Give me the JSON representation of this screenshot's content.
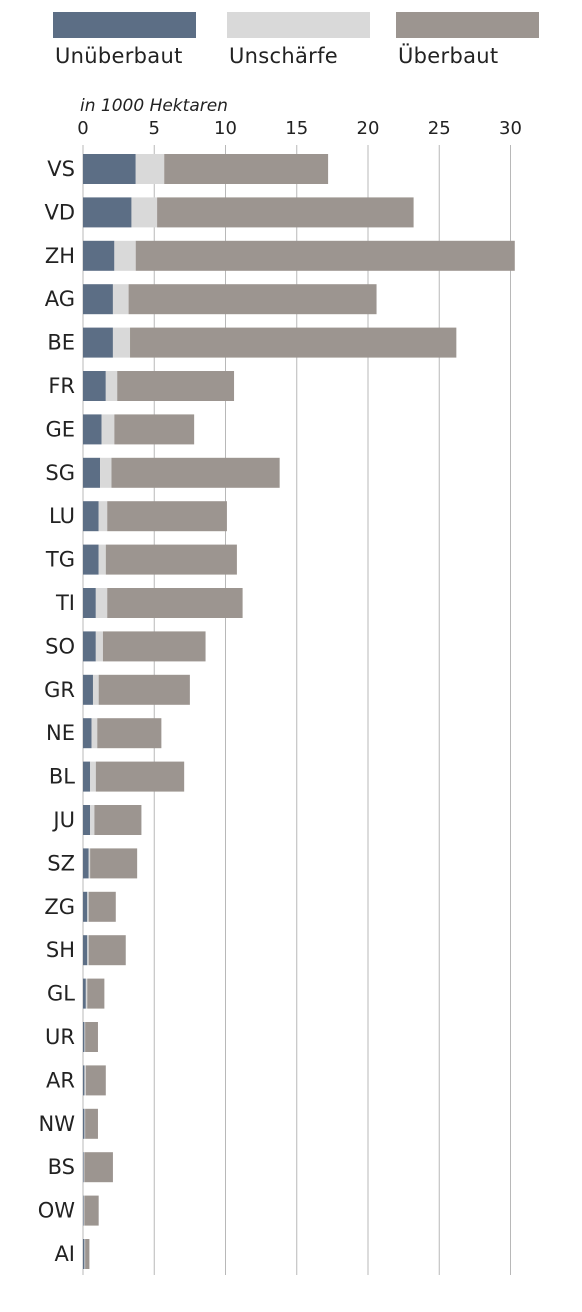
{
  "legend": [
    {
      "label": "Unüberbaut",
      "color": "#5c6e85"
    },
    {
      "label": "Unschärfe",
      "color": "#d9d9d9"
    },
    {
      "label": "Überbaut",
      "color": "#9c9590"
    }
  ],
  "chart_data": {
    "type": "bar",
    "orientation": "horizontal",
    "stacked": true,
    "unit_label": "in 1000 Hektaren",
    "xlim": [
      0,
      32
    ],
    "xticks": [
      0,
      5,
      10,
      15,
      20,
      25,
      30
    ],
    "grid": true,
    "legend_position": "top",
    "categories": [
      "VS",
      "VD",
      "ZH",
      "AG",
      "BE",
      "FR",
      "GE",
      "SG",
      "LU",
      "TG",
      "TI",
      "SO",
      "GR",
      "NE",
      "BL",
      "JU",
      "SZ",
      "ZG",
      "SH",
      "GL",
      "UR",
      "AR",
      "NW",
      "BS",
      "OW",
      "AI"
    ],
    "series": [
      {
        "name": "Unüberbaut",
        "color": "#5c6e85",
        "values": [
          3.7,
          3.4,
          2.2,
          2.1,
          2.1,
          1.6,
          1.3,
          1.2,
          1.1,
          1.1,
          0.9,
          0.9,
          0.7,
          0.6,
          0.5,
          0.5,
          0.4,
          0.3,
          0.3,
          0.2,
          0.1,
          0.1,
          0.1,
          0.05,
          0.05,
          0.1
        ]
      },
      {
        "name": "Unschärfe",
        "color": "#d9d9d9",
        "values": [
          2.0,
          1.8,
          1.5,
          1.1,
          1.2,
          0.8,
          0.9,
          0.8,
          0.6,
          0.5,
          0.8,
          0.5,
          0.4,
          0.4,
          0.4,
          0.3,
          0.1,
          0.1,
          0.1,
          0.1,
          0.05,
          0.1,
          0.05,
          0.05,
          0.05,
          0.05
        ]
      },
      {
        "name": "Überbaut",
        "color": "#9c9590",
        "values": [
          11.5,
          18.0,
          26.6,
          17.4,
          22.9,
          8.2,
          5.6,
          11.8,
          8.4,
          9.2,
          9.5,
          7.2,
          6.4,
          4.5,
          6.2,
          3.3,
          3.3,
          1.9,
          2.6,
          1.2,
          0.9,
          1.4,
          0.9,
          2.0,
          1.0,
          0.3
        ]
      }
    ]
  }
}
